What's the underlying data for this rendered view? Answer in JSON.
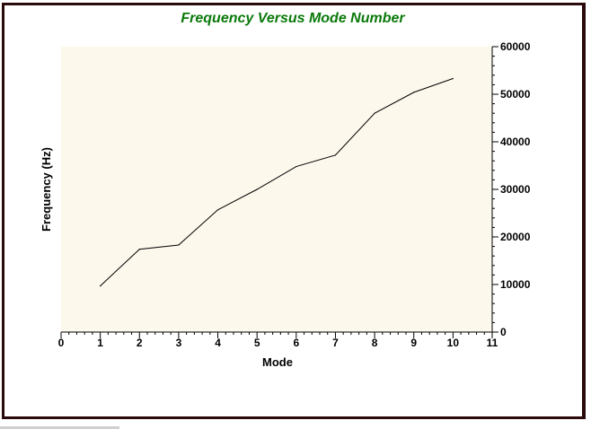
{
  "chart_data": {
    "type": "line",
    "title": "Frequency Versus Mode Number",
    "xlabel": "Mode",
    "ylabel": "Frequency (Hz)",
    "xlim": [
      0,
      11
    ],
    "ylim": [
      0,
      60000
    ],
    "x_ticks": [
      "0",
      "1",
      "2",
      "3",
      "4",
      "5",
      "6",
      "7",
      "8",
      "9",
      "10",
      "11"
    ],
    "y_ticks": [
      "0",
      "10000",
      "20000",
      "30000",
      "40000",
      "50000",
      "60000"
    ],
    "y_axis_side": "right",
    "grid": false,
    "legend": "none",
    "x": [
      1,
      2,
      3,
      4,
      5,
      6,
      7,
      8,
      9,
      10
    ],
    "series": [
      {
        "values": [
          9700,
          17400,
          18300,
          25700,
          30000,
          34800,
          37200,
          46000,
          50400,
          53300
        ]
      }
    ]
  },
  "colors": {
    "title": "#0a7a0a",
    "plot_background": "#fdf8ec",
    "line": "#000000",
    "frame_border": "#2a0a0a"
  }
}
